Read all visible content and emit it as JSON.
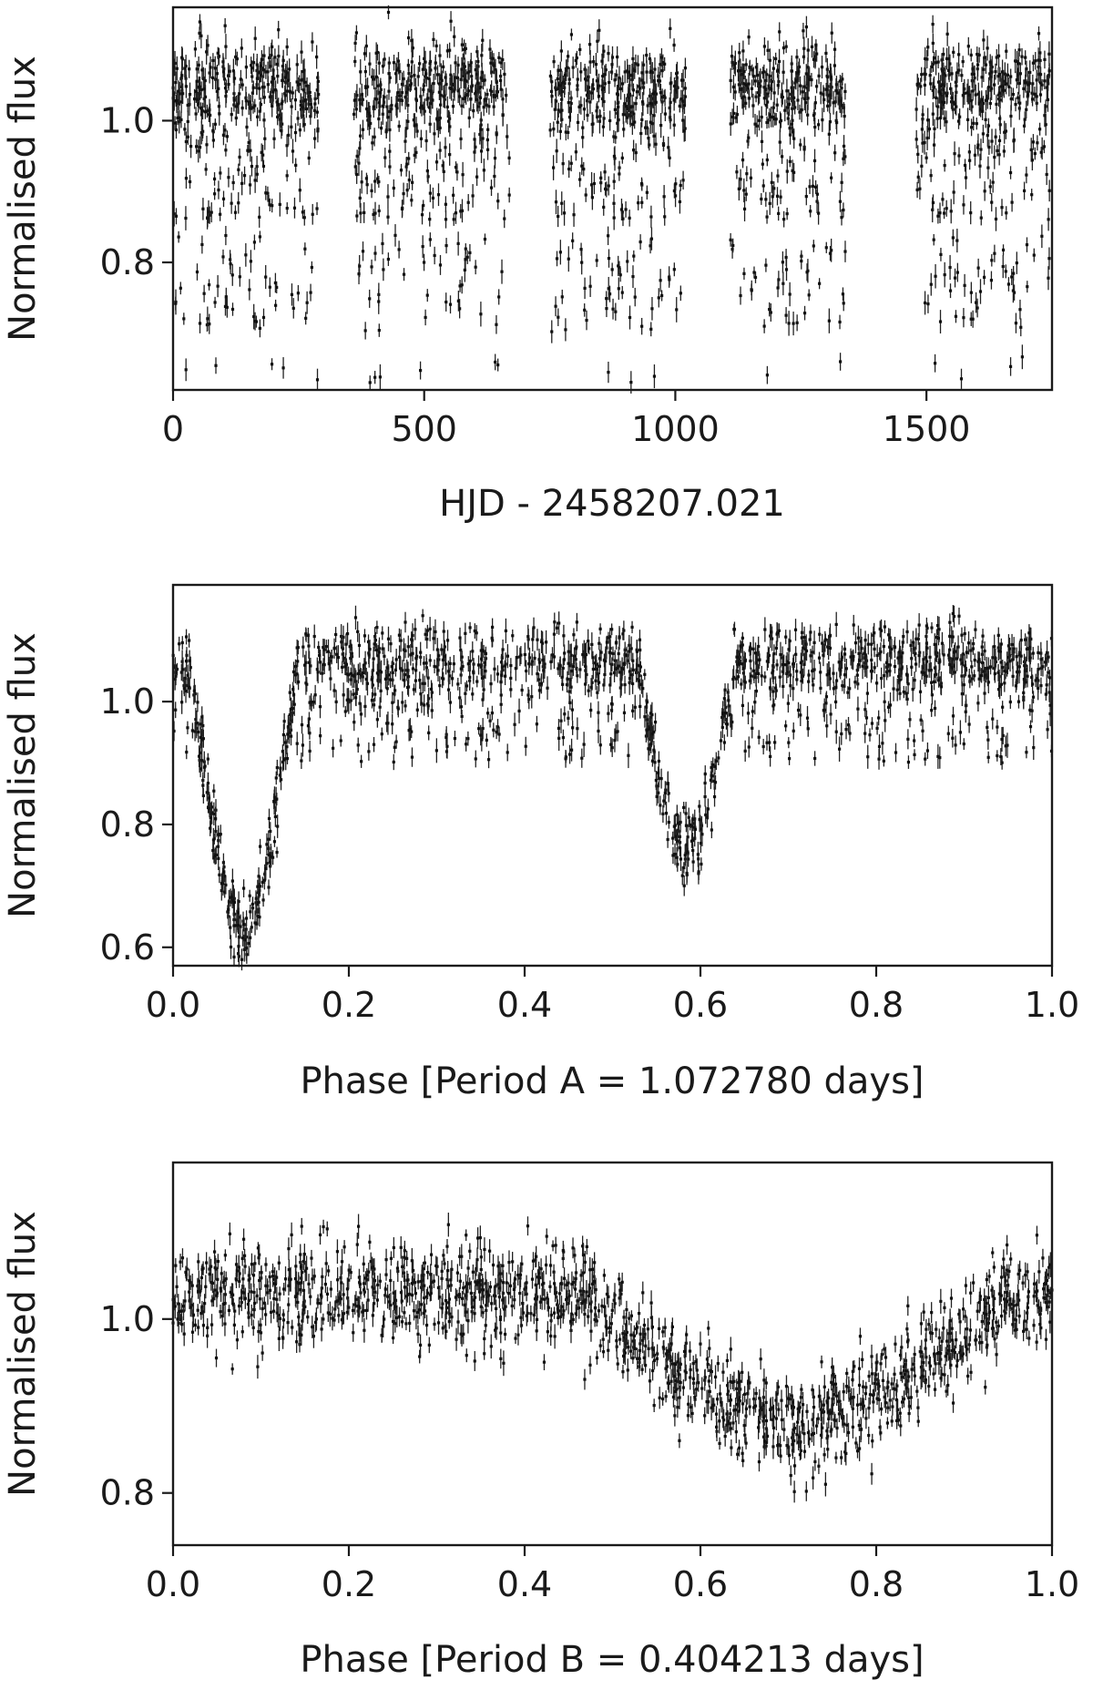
{
  "chart_data": [
    {
      "type": "scatter",
      "title": "",
      "xlabel": "HJD - 2458207.021",
      "ylabel": "Normalised flux",
      "xlim": [
        0,
        1750
      ],
      "ylim": [
        0.62,
        1.16
      ],
      "xticks": [
        0,
        500,
        1000,
        1500
      ],
      "xtick_labels": [
        "0",
        "500",
        "1000",
        "1500"
      ],
      "yticks": [
        0.8,
        1.0
      ],
      "ytick_labels": [
        "0.8",
        "1.0"
      ],
      "grid": false,
      "error_bars": "vertical",
      "observing_seasons": [
        [
          0,
          290
        ],
        [
          360,
          670
        ],
        [
          750,
          1020
        ],
        [
          1110,
          1340
        ],
        [
          1480,
          1745
        ]
      ],
      "flux_baseline": 1.05,
      "flux_min": 0.63
    },
    {
      "type": "scatter",
      "title": "",
      "xlabel": "Phase [Period A = 1.072780 days]",
      "ylabel": "Normalised flux",
      "xlim": [
        0.0,
        1.0
      ],
      "ylim": [
        0.57,
        1.19
      ],
      "xticks": [
        0.0,
        0.2,
        0.4,
        0.6,
        0.8,
        1.0
      ],
      "xtick_labels": [
        "0.0",
        "0.2",
        "0.4",
        "0.6",
        "0.8",
        "1.0"
      ],
      "yticks": [
        0.6,
        0.8,
        1.0
      ],
      "ytick_labels": [
        "0.6",
        "0.8",
        "1.0"
      ],
      "grid": false,
      "error_bars": "vertical",
      "eclipses": [
        {
          "center_phase": 0.08,
          "min_flux": 0.63
        },
        {
          "center_phase": 0.585,
          "min_flux": 0.76
        }
      ],
      "out_of_eclipse_flux": 1.06
    },
    {
      "type": "scatter",
      "title": "",
      "xlabel": "Phase [Period B = 0.404213 days]",
      "ylabel": "Normalised flux",
      "xlim": [
        0.0,
        1.0
      ],
      "ylim": [
        0.74,
        1.18
      ],
      "xticks": [
        0.0,
        0.2,
        0.4,
        0.6,
        0.8,
        1.0
      ],
      "xtick_labels": [
        "0.0",
        "0.2",
        "0.4",
        "0.6",
        "0.8",
        "1.0"
      ],
      "yticks": [
        0.8,
        1.0
      ],
      "ytick_labels": [
        "0.8",
        "1.0"
      ],
      "grid": false,
      "error_bars": "vertical",
      "eclipses": [
        {
          "center_phase": 0.71,
          "min_flux": 0.88
        }
      ],
      "out_of_eclipse_flux": 1.03
    }
  ]
}
